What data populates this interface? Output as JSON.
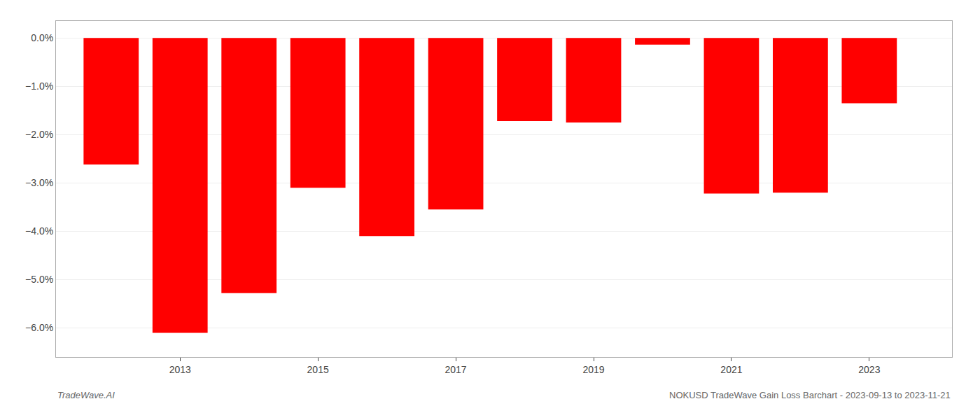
{
  "chart_data": {
    "type": "bar",
    "x": [
      2012,
      2013,
      2014,
      2015,
      2016,
      2017,
      2018,
      2019,
      2020,
      2021,
      2022,
      2023
    ],
    "values": [
      -2.62,
      -6.1,
      -5.28,
      -3.1,
      -4.1,
      -3.55,
      -1.72,
      -1.75,
      -0.14,
      -3.22,
      -3.2,
      -1.35
    ],
    "color": "#ff0000",
    "xlim": [
      2011.2,
      2024.2
    ],
    "xticks": [
      2013,
      2015,
      2017,
      2019,
      2021,
      2023
    ],
    "ylim": [
      -6.6,
      0.35
    ],
    "yticks": [
      {
        "value": 0.0,
        "label": "0.0%"
      },
      {
        "value": -1.0,
        "label": "−1.0%"
      },
      {
        "value": -2.0,
        "label": "−2.0%"
      },
      {
        "value": -3.0,
        "label": "−3.0%"
      },
      {
        "value": -4.0,
        "label": "−4.0%"
      },
      {
        "value": -5.0,
        "label": "−5.0%"
      },
      {
        "value": -6.0,
        "label": "−6.0%"
      }
    ],
    "grid": true,
    "annotations": [
      "TradeWave.AI",
      "NOKUSD TradeWave Gain Loss Barchart - 2023-09-13 to 2023-11-21"
    ]
  }
}
